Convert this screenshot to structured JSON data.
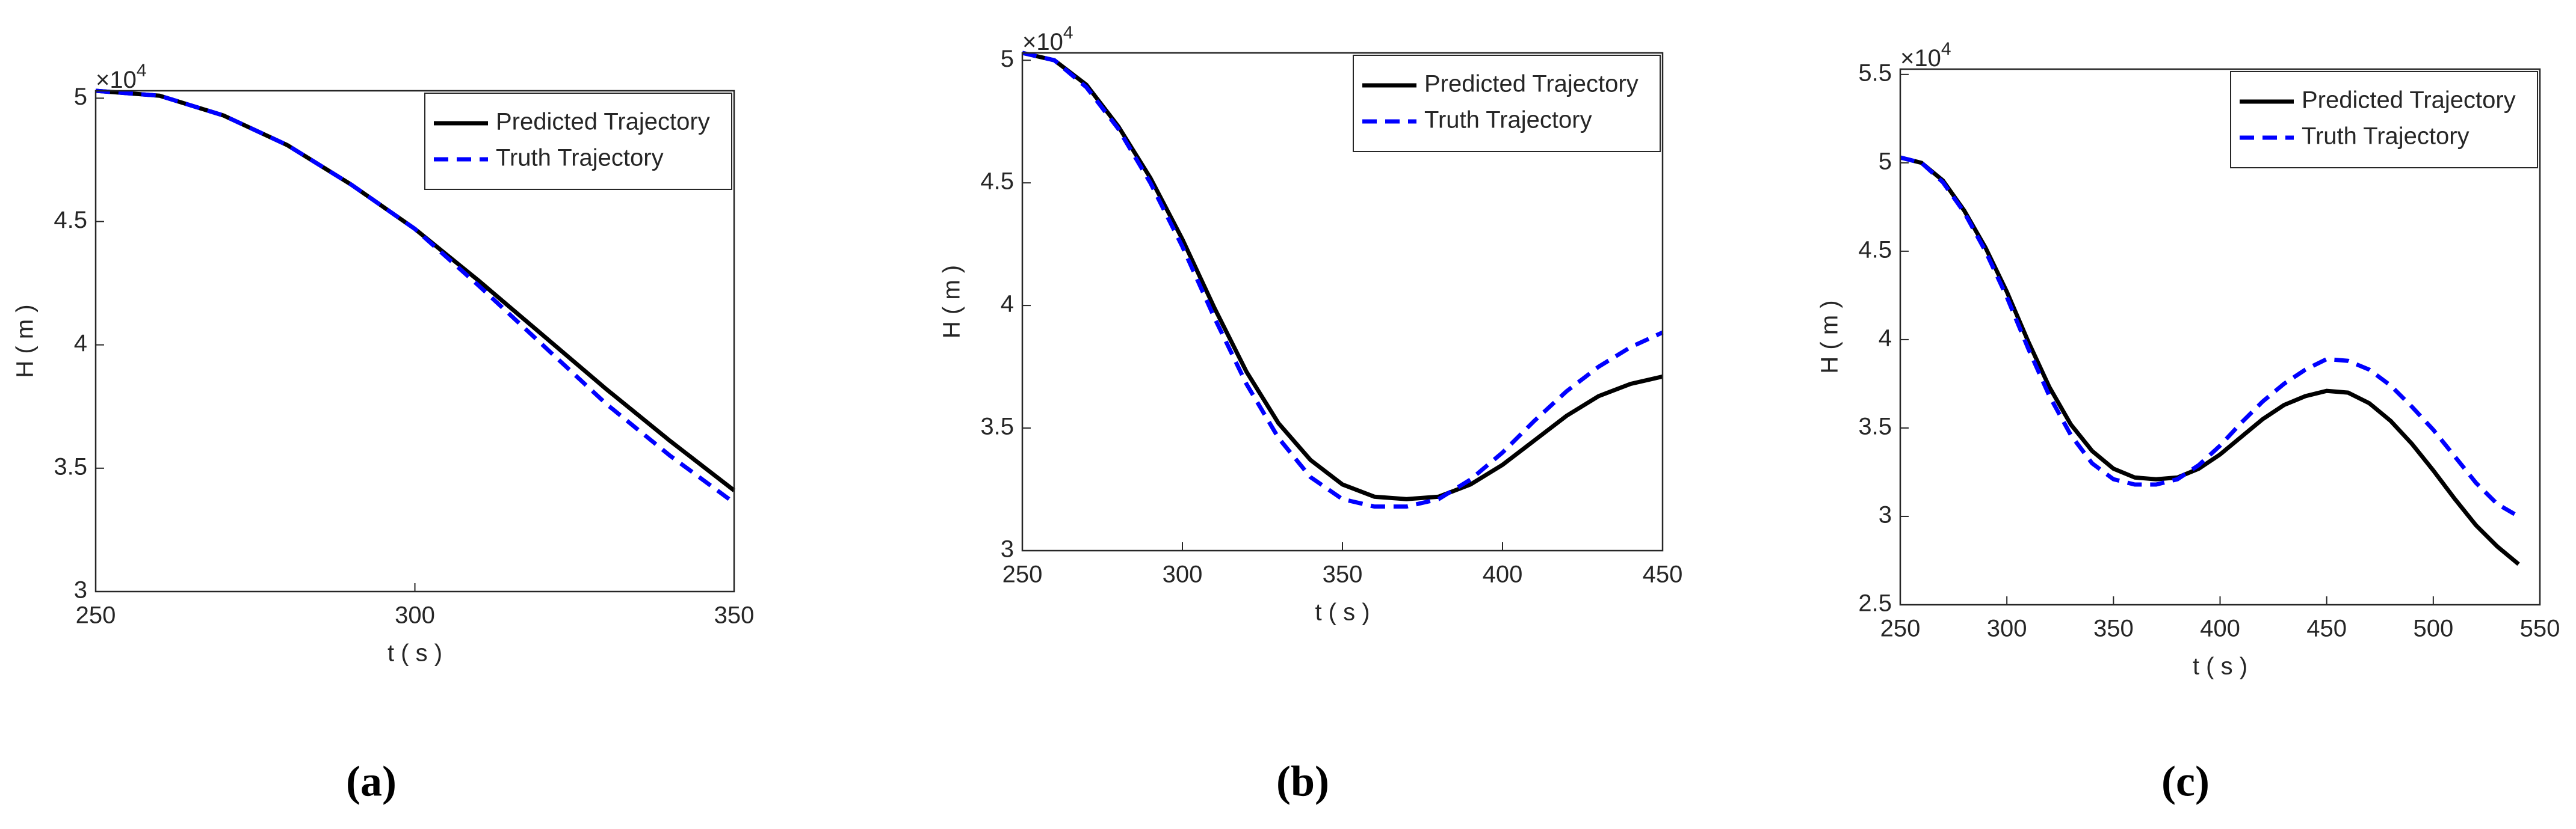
{
  "chart_data": [
    {
      "type": "line",
      "caption": "(a)",
      "xlabel": "t ( s )",
      "ylabel": "H ( m )",
      "y_scale_base": "×10",
      "y_scale_exp": "4",
      "legend": "upper right",
      "grid": false,
      "x": [
        250,
        260,
        270,
        280,
        290,
        300,
        310,
        320,
        330,
        340,
        350
      ],
      "series": [
        {
          "name": "Predicted Trajectory",
          "color": "#000000",
          "dash": false,
          "values": [
            5.03,
            5.01,
            4.93,
            4.81,
            4.65,
            4.47,
            4.26,
            4.04,
            3.82,
            3.61,
            3.41
          ]
        },
        {
          "name": "Truth Trajectory",
          "color": "#0000ff",
          "dash": true,
          "values": [
            5.03,
            5.01,
            4.93,
            4.81,
            4.65,
            4.47,
            4.24,
            4.0,
            3.76,
            3.55,
            3.36
          ]
        }
      ],
      "xlim": [
        250,
        350
      ],
      "xticks": [
        250,
        300,
        350
      ],
      "ylim": [
        3,
        5.03
      ],
      "yticks": [
        3,
        3.5,
        4,
        4.5,
        5
      ]
    },
    {
      "type": "line",
      "caption": "(b)",
      "xlabel": "t ( s )",
      "ylabel": "H ( m )",
      "y_scale_base": "×10",
      "y_scale_exp": "4",
      "legend": "upper right",
      "grid": false,
      "x": [
        250,
        260,
        270,
        280,
        290,
        300,
        310,
        320,
        330,
        340,
        350,
        360,
        370,
        380,
        390,
        400,
        410,
        420,
        430,
        440,
        450
      ],
      "series": [
        {
          "name": "Predicted Trajectory",
          "color": "#000000",
          "dash": false,
          "values": [
            5.03,
            5.0,
            4.9,
            4.73,
            4.52,
            4.27,
            3.99,
            3.73,
            3.52,
            3.37,
            3.27,
            3.22,
            3.21,
            3.22,
            3.27,
            3.35,
            3.45,
            3.55,
            3.63,
            3.68,
            3.71
          ]
        },
        {
          "name": "Truth Trajectory",
          "color": "#0000ff",
          "dash": true,
          "values": [
            5.03,
            5.0,
            4.89,
            4.72,
            4.5,
            4.24,
            3.95,
            3.68,
            3.46,
            3.3,
            3.21,
            3.18,
            3.18,
            3.21,
            3.29,
            3.4,
            3.53,
            3.65,
            3.75,
            3.83,
            3.89
          ]
        }
      ],
      "xlim": [
        250,
        450
      ],
      "xticks": [
        250,
        300,
        350,
        400,
        450
      ],
      "ylim": [
        3,
        5.03
      ],
      "yticks": [
        3,
        3.5,
        4,
        4.5,
        5
      ]
    },
    {
      "type": "line",
      "caption": "(c)",
      "xlabel": "t ( s )",
      "ylabel": "H ( m )",
      "y_scale_base": "×10",
      "y_scale_exp": "4",
      "legend": "upper right",
      "grid": false,
      "x": [
        250,
        260,
        270,
        280,
        290,
        300,
        310,
        320,
        330,
        340,
        350,
        360,
        370,
        380,
        390,
        400,
        410,
        420,
        430,
        440,
        450,
        460,
        470,
        480,
        490,
        500,
        510,
        520,
        530,
        540
      ],
      "series": [
        {
          "name": "Predicted Trajectory",
          "color": "#000000",
          "dash": false,
          "values": [
            5.03,
            5.0,
            4.9,
            4.73,
            4.52,
            4.27,
            3.99,
            3.73,
            3.52,
            3.37,
            3.27,
            3.22,
            3.21,
            3.22,
            3.27,
            3.35,
            3.45,
            3.55,
            3.63,
            3.68,
            3.71,
            3.7,
            3.64,
            3.54,
            3.41,
            3.26,
            3.1,
            2.95,
            2.83,
            2.73
          ]
        },
        {
          "name": "Truth Trajectory",
          "color": "#0000ff",
          "dash": true,
          "values": [
            5.03,
            5.0,
            4.89,
            4.72,
            4.5,
            4.24,
            3.95,
            3.68,
            3.46,
            3.3,
            3.21,
            3.18,
            3.18,
            3.21,
            3.29,
            3.4,
            3.53,
            3.65,
            3.75,
            3.83,
            3.89,
            3.88,
            3.83,
            3.74,
            3.62,
            3.49,
            3.34,
            3.19,
            3.07,
            3.0
          ]
        }
      ],
      "xlim": [
        250,
        550
      ],
      "xticks": [
        250,
        300,
        350,
        400,
        450,
        500,
        550
      ],
      "ylim": [
        2.5,
        5.53
      ],
      "yticks": [
        2.5,
        3,
        3.5,
        4,
        4.5,
        5,
        5.5
      ]
    }
  ]
}
